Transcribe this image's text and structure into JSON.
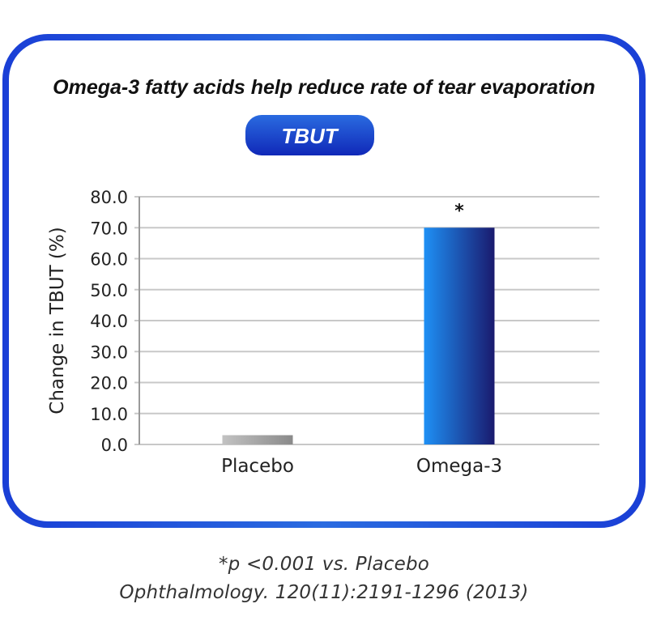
{
  "colors": {
    "frame": "#1a3fd6",
    "pill_start": "#2a6be0",
    "pill_end": "#1028b8",
    "grid": "#c8c8c8",
    "axis": "#9a9a9a",
    "bar_placebo_start": "#c2c2c2",
    "bar_placebo_end": "#8a8a8a",
    "bar_omega_start": "#1e90f5",
    "bar_omega_end": "#1a1a6e"
  },
  "chart_data": {
    "type": "bar",
    "title": "Omega-3 fatty acids help reduce rate of tear evaporation",
    "subtitle": "TBUT",
    "ylabel": "Change in TBUT (%)",
    "xlabel": "",
    "ylim": [
      0,
      80
    ],
    "yticks": [
      "0.0",
      "10.0",
      "20.0",
      "30.0",
      "40.0",
      "50.0",
      "60.0",
      "70.0",
      "80.0"
    ],
    "grid": true,
    "categories": [
      "Placebo",
      "Omega-3"
    ],
    "values": [
      3,
      70
    ],
    "annotations": [
      "",
      "*"
    ]
  },
  "footnotes": {
    "significance": "*p <0.001 vs. Placebo",
    "source": "Ophthalmology. 120(11):2191-1296 (2013)"
  }
}
